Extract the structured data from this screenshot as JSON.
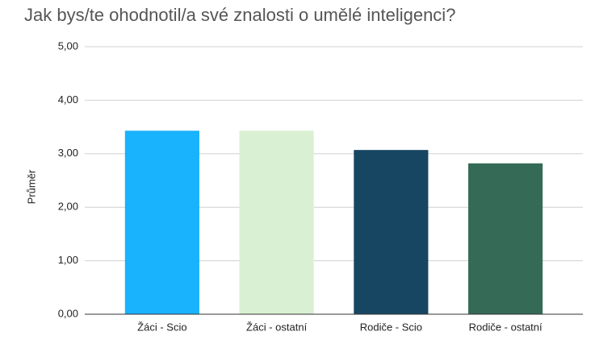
{
  "chart_data": {
    "type": "bar",
    "title": "Jak bys/te ohodnotil/a své znalosti o umělé inteligenci?",
    "y_label": "Průměr",
    "categories": [
      "Žáci - Scio",
      "Žáci - ostatní",
      "Rodiče - Scio",
      "Rodiče - ostatní"
    ],
    "values": [
      3.43,
      3.43,
      3.07,
      2.82
    ],
    "colors": [
      "#19b2fc",
      "#d9f1d2",
      "#174663",
      "#346a56"
    ],
    "ylim": [
      0,
      5
    ],
    "yticks": [
      {
        "value": 0,
        "label": "0,00"
      },
      {
        "value": 1,
        "label": "1,00"
      },
      {
        "value": 2,
        "label": "2,00"
      },
      {
        "value": 3,
        "label": "3,00"
      },
      {
        "value": 4,
        "label": "4,00"
      },
      {
        "value": 5,
        "label": "5,00"
      }
    ],
    "grid": true
  }
}
